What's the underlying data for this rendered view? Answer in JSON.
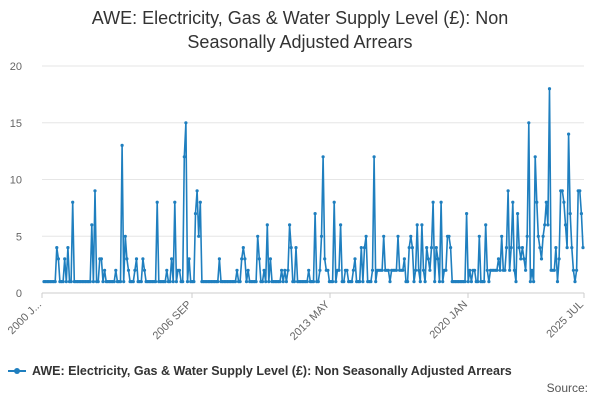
{
  "chart_data": {
    "type": "line",
    "title_line1": "AWE: Electricity, Gas & Water Supply Level (£): Non",
    "title_line2": "Seasonally Adjusted Arrears",
    "ylim": [
      0,
      20
    ],
    "yticks": [
      "0",
      "5",
      "10",
      "15",
      "20"
    ],
    "xlabels": [
      "2000 J...",
      "2006 SEP",
      "2013 MAY",
      "2020 JAN",
      "2025 JUL"
    ],
    "legend": "AWE: Electricity, Gas & Water Supply Level (£): Non Seasonally Adjusted Arrears",
    "source_label": "Source:",
    "series": [
      {
        "name": "AWE: Electricity, Gas & Water Supply Level (£): Non Seasonally Adjusted Arrears",
        "color": "#1f7fbf",
        "values": [
          1,
          1,
          1,
          1,
          1,
          1,
          1,
          1,
          4,
          3,
          1,
          1,
          1,
          3,
          1,
          4,
          1,
          1,
          8,
          1,
          1,
          1,
          1,
          1,
          1,
          1,
          1,
          1,
          1,
          1,
          6,
          1,
          9,
          1,
          1,
          3,
          3,
          1,
          2,
          1,
          1,
          1,
          1,
          1,
          1,
          2,
          1,
          1,
          1,
          13,
          1,
          5,
          3,
          2,
          1,
          1,
          1,
          2,
          3,
          1,
          1,
          1,
          3,
          2,
          1,
          1,
          1,
          1,
          1,
          1,
          1,
          8,
          1,
          1,
          1,
          1,
          1,
          2,
          1,
          1,
          3,
          1,
          8,
          1,
          2,
          2,
          1,
          1,
          12,
          15,
          1,
          3,
          1,
          1,
          1,
          7,
          9,
          5,
          8,
          1,
          1,
          1,
          1,
          1,
          1,
          1,
          1,
          1,
          1,
          1,
          3,
          1,
          1,
          1,
          1,
          1,
          1,
          1,
          1,
          1,
          1,
          2,
          1,
          1,
          3,
          4,
          3,
          1,
          2,
          1,
          1,
          1,
          1,
          1,
          5,
          3,
          1,
          1,
          2,
          1,
          6,
          1,
          3,
          1,
          1,
          1,
          1,
          1,
          1,
          2,
          1,
          2,
          1,
          2,
          6,
          4,
          1,
          1,
          4,
          1,
          1,
          1,
          1,
          1,
          1,
          1,
          2,
          1,
          1,
          1,
          7,
          1,
          1,
          2,
          5,
          12,
          3,
          2,
          2,
          1,
          1,
          1,
          8,
          1,
          2,
          2,
          6,
          1,
          1,
          2,
          2,
          1,
          1,
          1,
          2,
          3,
          1,
          1,
          1,
          4,
          1,
          4,
          5,
          1,
          1,
          1,
          2,
          12,
          1,
          2,
          2,
          2,
          2,
          5,
          2,
          2,
          2,
          1,
          2,
          2,
          2,
          2,
          5,
          2,
          2,
          2,
          3,
          1,
          1,
          4,
          5,
          4,
          1,
          2,
          6,
          2,
          1,
          6,
          2,
          1,
          4,
          3,
          2,
          4,
          8,
          1,
          4,
          3,
          1,
          8,
          1,
          2,
          2,
          5,
          5,
          4,
          1,
          1,
          1,
          1,
          1,
          1,
          1,
          1,
          1,
          7,
          1,
          2,
          1,
          2,
          2,
          1,
          1,
          5,
          1,
          1,
          1,
          6,
          2,
          1,
          2,
          2,
          2,
          2,
          2,
          3,
          2,
          5,
          2,
          2,
          4,
          9,
          2,
          4,
          8,
          2,
          1,
          7,
          4,
          3,
          4,
          3,
          2,
          5,
          15,
          1,
          2,
          1,
          12,
          8,
          5,
          4,
          3,
          5,
          6,
          8,
          6,
          18,
          2,
          2,
          2,
          4,
          1,
          3,
          9,
          9,
          8,
          6,
          4,
          14,
          7,
          4,
          2,
          1,
          2,
          9,
          9,
          7,
          4
        ]
      }
    ]
  }
}
